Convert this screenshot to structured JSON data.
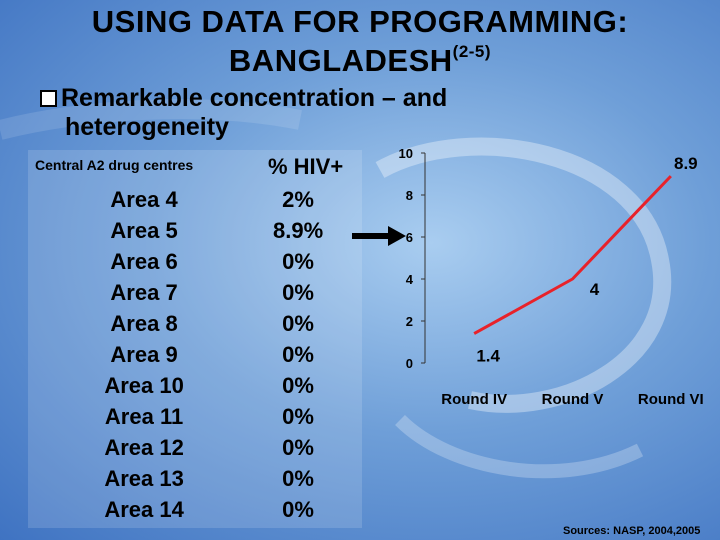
{
  "title": {
    "line1": "USING DATA FOR PROGRAMMING:",
    "line2": "BANGLADESH",
    "superscript": "(2-5)"
  },
  "bullet": {
    "line1": "Remarkable concentration – and",
    "line2": "heterogeneity"
  },
  "table": {
    "header_left": "Central A2 drug centres",
    "header_right": "% HIV+",
    "rows": [
      {
        "area": "Area 4",
        "hiv": "2%"
      },
      {
        "area": "Area 5",
        "hiv": "8.9%"
      },
      {
        "area": "Area 6",
        "hiv": "0%"
      },
      {
        "area": "Area 7",
        "hiv": "0%"
      },
      {
        "area": "Area 8",
        "hiv": "0%"
      },
      {
        "area": "Area 9",
        "hiv": "0%"
      },
      {
        "area": "Area 10",
        "hiv": "0%"
      },
      {
        "area": "Area 11",
        "hiv": "0%"
      },
      {
        "area": "Area 12",
        "hiv": "0%"
      },
      {
        "area": "Area 13",
        "hiv": "0%"
      },
      {
        "area": "Area 14",
        "hiv": "0%"
      }
    ]
  },
  "chart_data": {
    "type": "line",
    "categories": [
      "Round IV",
      "Round V",
      "Round VI"
    ],
    "series": [
      {
        "values": [
          1.4,
          4,
          8.9
        ],
        "color": "#e8222a"
      }
    ],
    "data_labels": [
      "1.4",
      "4",
      "8.9"
    ],
    "yticks": [
      "0",
      "2",
      "4",
      "6",
      "8",
      "10"
    ],
    "ylim": [
      0,
      10
    ],
    "grid": false,
    "legend": "none"
  },
  "sources": "Sources: NASP, 2004,2005"
}
